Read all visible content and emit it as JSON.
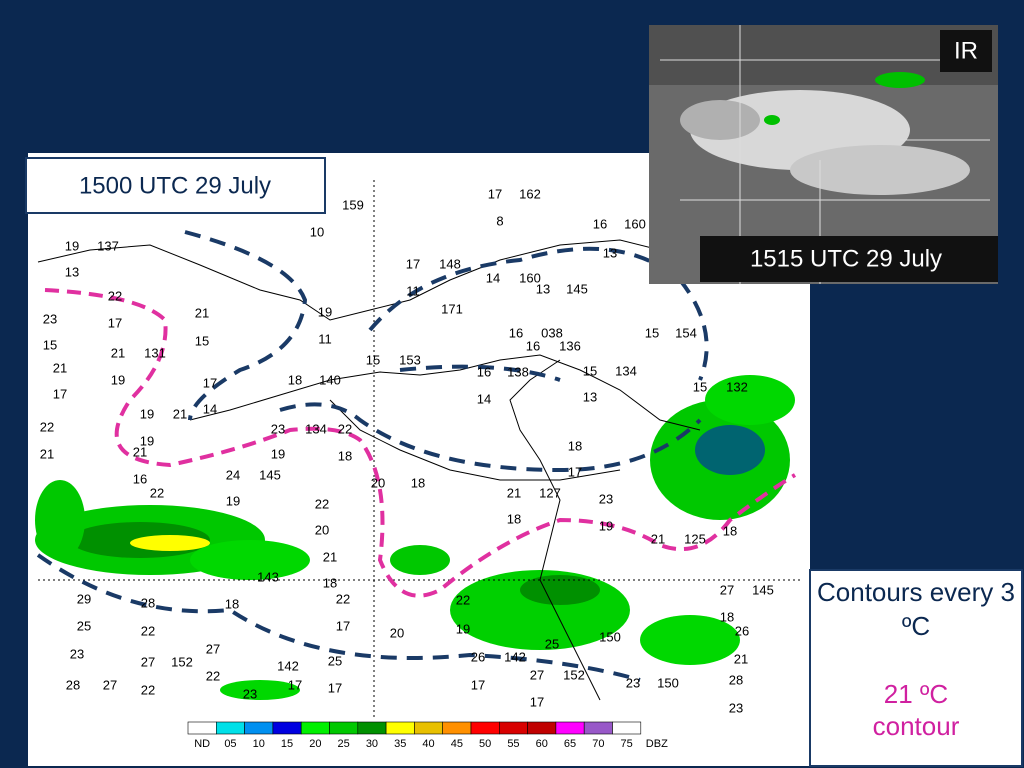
{
  "map_title": "1500 UTC 29 July",
  "ir_image": {
    "label": "IR",
    "time": "1515 UTC 29 July"
  },
  "notes": {
    "contours": "Contours every 3 ºC",
    "highlight": "21 ºC contour"
  },
  "legend": {
    "labels": [
      "ND",
      "05",
      "10",
      "15",
      "20",
      "25",
      "30",
      "35",
      "40",
      "45",
      "50",
      "55",
      "60",
      "65",
      "70",
      "75"
    ],
    "colors": [
      "#ffffff",
      "#00e0e8",
      "#0090f0",
      "#0000e0",
      "#00f000",
      "#00c800",
      "#009000",
      "#ffff00",
      "#e8c000",
      "#ff9000",
      "#ff0000",
      "#d80000",
      "#c00000",
      "#ff00ff",
      "#9858c8",
      "#ffffff"
    ],
    "unit": "DBZ"
  },
  "stations": [
    "19",
    "137",
    "13",
    "22",
    "23",
    "17",
    "15",
    "21",
    "131",
    "21",
    "19",
    "17",
    "19",
    "21",
    "14",
    "22",
    "21",
    "19",
    "21",
    "16",
    "22",
    "21",
    "15",
    "17",
    "18",
    "140",
    "23",
    "134",
    "22",
    "19",
    "18",
    "24",
    "145",
    "19",
    "22",
    "20",
    "21",
    "20",
    "18",
    "159",
    "10",
    "19",
    "11",
    "17",
    "162",
    "8",
    "16",
    "160",
    "13",
    "17",
    "148",
    "11",
    "14",
    "160",
    "13",
    "145",
    "171",
    "16",
    "038",
    "16",
    "136",
    "15",
    "154",
    "15",
    "153",
    "16",
    "138",
    "15",
    "134",
    "14",
    "13",
    "15",
    "132",
    "18",
    "17",
    "21",
    "127",
    "18",
    "23",
    "19",
    "21",
    "125",
    "18",
    "27",
    "145",
    "18",
    "26",
    "21",
    "28",
    "23",
    "29",
    "28",
    "25",
    "22",
    "23",
    "27",
    "152",
    "28",
    "27",
    "22",
    "18",
    "143",
    "18",
    "22",
    "17",
    "20",
    "22",
    "19",
    "26",
    "142",
    "17",
    "25",
    "150",
    "27",
    "152",
    "17",
    "23",
    "150",
    "25",
    "17",
    "17",
    "142",
    "23",
    "22",
    "27"
  ]
}
